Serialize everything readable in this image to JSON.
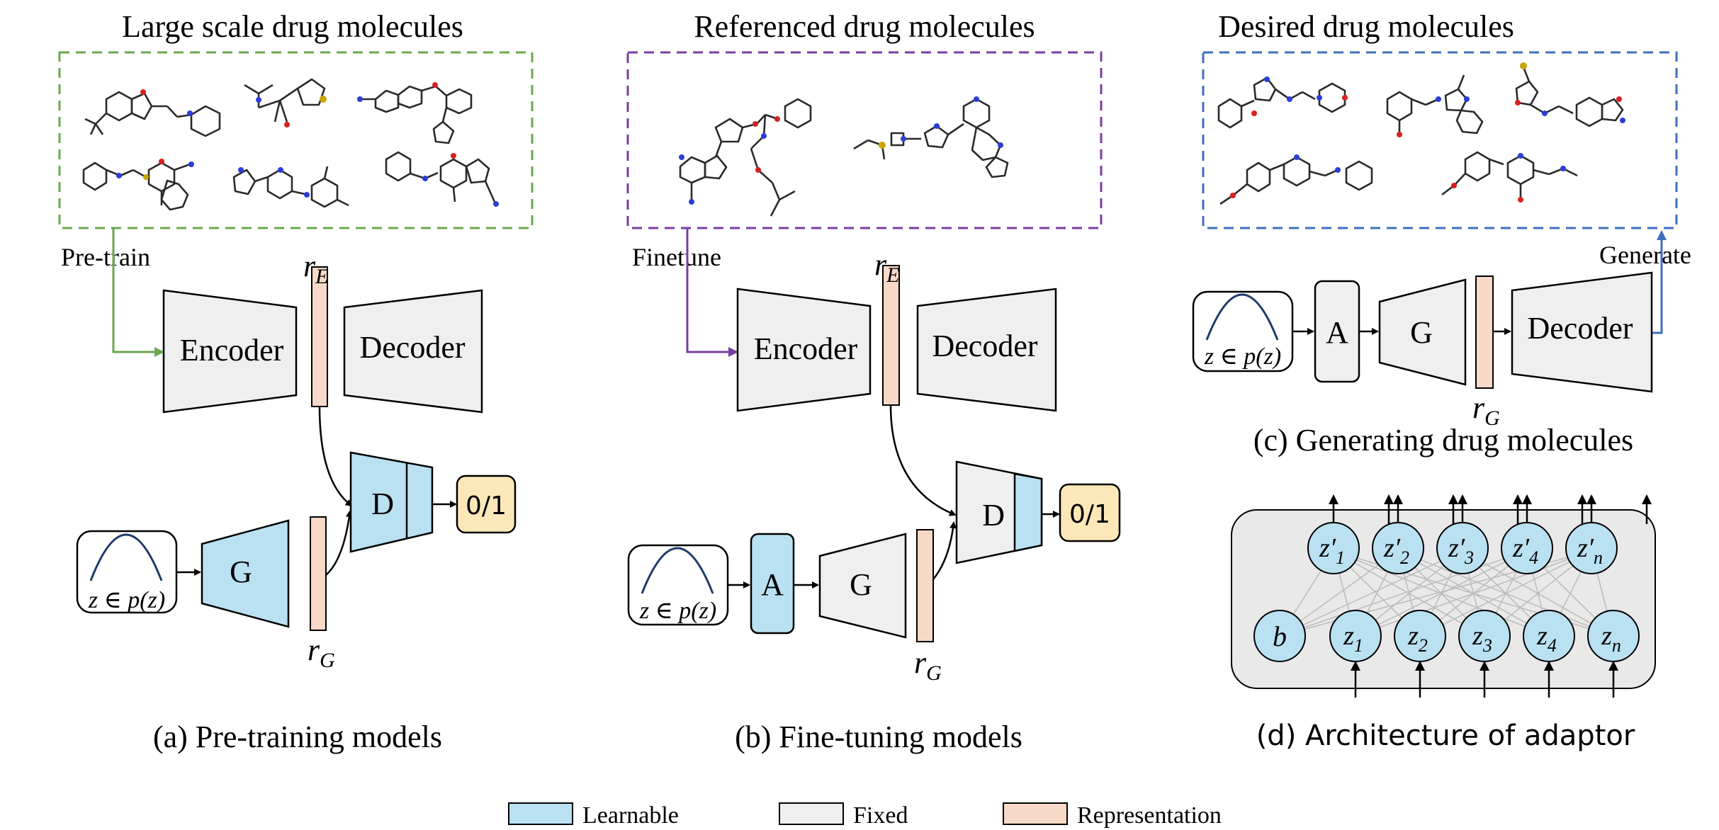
{
  "panels": {
    "a": {
      "header": "Large scale drug molecules",
      "arrow_label": "Pre-train",
      "encoder": "Encoder",
      "decoder": "Decoder",
      "generator": "G",
      "discriminator": "D",
      "output": "0/1",
      "prior": "z ∈ p(z)",
      "caption": "(a) Pre-training models"
    },
    "b": {
      "header": "Referenced drug molecules",
      "arrow_label": "Finetune",
      "encoder": "Encoder",
      "decoder": "Decoder",
      "adaptor": "A",
      "generator": "G",
      "discriminator": "D",
      "output": "0/1",
      "prior": "z ∈ p(z)",
      "caption": "(b) Fine-tuning models"
    },
    "c": {
      "header": "Desired drug molecules",
      "arrow_label": "Generate",
      "adaptor": "A",
      "generator": "G",
      "decoder": "Decoder",
      "prior": "z ∈ p(z)",
      "caption": "(c) Generating drug molecules"
    },
    "d": {
      "bias": "b",
      "caption": "(d) Architecture of adaptor"
    }
  },
  "representations": {
    "r_base": "r",
    "sub_E": "E",
    "sub_G": "G"
  },
  "legend": [
    {
      "label": "Learnable",
      "color": "#b9e1f1"
    },
    {
      "label": "Fixed",
      "color": "#efefef"
    },
    {
      "label": "Representation",
      "color": "#f8d9c8"
    }
  ],
  "colors": {
    "learnable": "#b9e1f1",
    "fixed": "#efefef",
    "representation": "#f8d9c8",
    "output": "#fbe7b8",
    "pretrain_arrow": "#6aa84f",
    "finetune_arrow": "#7a3ea0",
    "generate_arrow": "#3d6fbf"
  }
}
